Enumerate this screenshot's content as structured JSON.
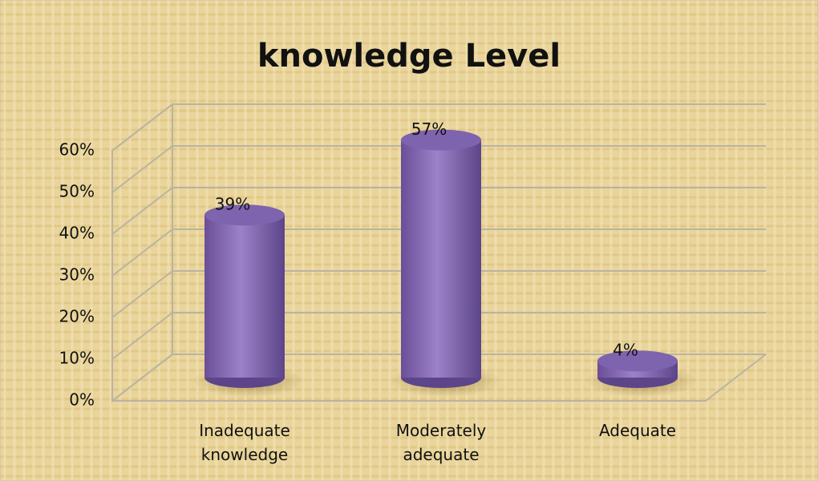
{
  "chart_data": {
    "type": "bar",
    "title": "knowledge Level",
    "categories": [
      "Inadequate knowledge",
      "Moderately adequate",
      "Adequate"
    ],
    "values": [
      39,
      57,
      4
    ],
    "value_labels": [
      "39%",
      "57%",
      "4%"
    ],
    "color": "#8a6fb8",
    "ylim": [
      0,
      60
    ],
    "yticks": [
      {
        "value": 0,
        "label": "0%"
      },
      {
        "value": 10,
        "label": "10%"
      },
      {
        "value": 20,
        "label": "20%"
      },
      {
        "value": 30,
        "label": "30%"
      },
      {
        "value": 40,
        "label": "40%"
      },
      {
        "value": 50,
        "label": "50%"
      },
      {
        "value": 60,
        "label": "60%"
      }
    ],
    "grid": true
  }
}
